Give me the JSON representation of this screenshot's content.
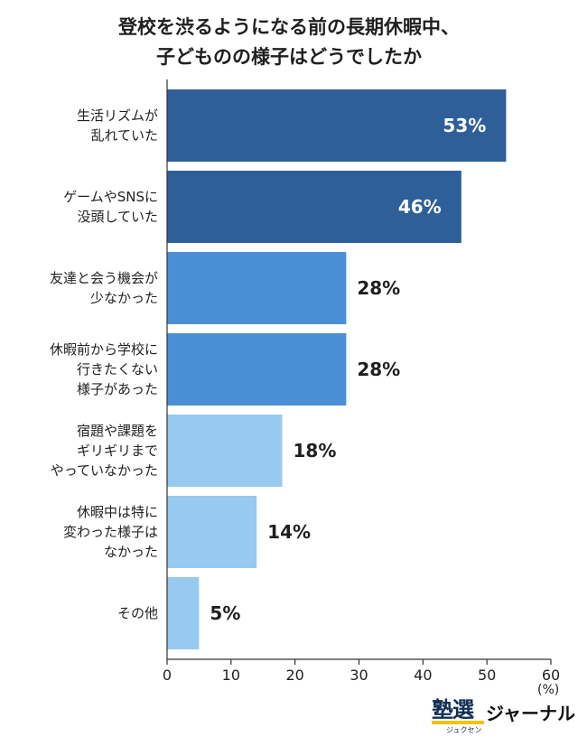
{
  "title_lines": [
    "登校を渋るようになる前の長期休暇中、",
    "子どものの様子はどうでしたか"
  ],
  "unit_label": "(%)",
  "logo": {
    "kanji": "塾選",
    "small": "ジュクセン",
    "word": "ジャーナル"
  },
  "colors": {
    "dark": "#2e5f99",
    "medium": "#4a8fd6",
    "light": "#98c9ee",
    "axis": "#333333"
  },
  "chart_data": {
    "type": "bar",
    "orientation": "horizontal",
    "title": "登校を渋るようになる前の長期休暇中、子どものの様子はどうでしたか",
    "categories": [
      "生活リズムが\n乱れていた",
      "ゲームやSNSに\n没頭していた",
      "友達と会う機会が\n少なかった",
      "休暇前から学校に\n行きたくない\n様子があった",
      "宿題や課題を\nギリギリまで\nやっていなかった",
      "休暇中は特に\n変わった様子は\nなかった",
      "その他"
    ],
    "values": [
      53,
      46,
      28,
      28,
      18,
      14,
      5
    ],
    "value_labels": [
      "53%",
      "46%",
      "28%",
      "28%",
      "18%",
      "14%",
      "5%"
    ],
    "bar_shades": [
      "dark",
      "dark",
      "medium",
      "medium",
      "light",
      "light",
      "light"
    ],
    "xlim": [
      0,
      60
    ],
    "xticks": [
      0,
      10,
      20,
      30,
      40,
      50,
      60
    ],
    "xlabel": "(%)",
    "ylabel": "",
    "grid": false
  }
}
